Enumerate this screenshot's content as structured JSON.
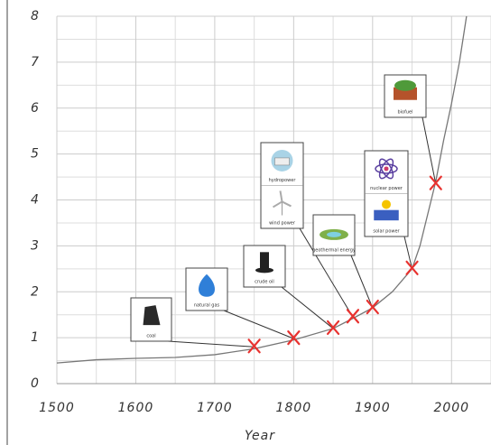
{
  "chart_data": {
    "type": "line",
    "x_label": "Year",
    "x": [
      1500,
      1550,
      1600,
      1650,
      1700,
      1750,
      1800,
      1850,
      1875,
      1900,
      1925,
      1950,
      1960,
      1970,
      1980,
      1990,
      2000,
      2010,
      2019
    ],
    "series": [
      {
        "color": "#777777",
        "values": [
          0.45,
          0.52,
          0.55,
          0.57,
          0.63,
          0.76,
          0.95,
          1.2,
          1.42,
          1.65,
          2.0,
          2.5,
          3.0,
          3.7,
          4.4,
          5.3,
          6.1,
          7.0,
          8.0
        ]
      }
    ],
    "markers": {
      "color": "#e8322f",
      "points": [
        {
          "labels": [
            "coal"
          ],
          "x": 1750,
          "y": 0.8
        },
        {
          "labels": [
            "natural gas"
          ],
          "x": 1800,
          "y": 0.98
        },
        {
          "labels": [
            "crude oil"
          ],
          "x": 1850,
          "y": 1.2
        },
        {
          "labels": [
            "hydropower",
            "wind power"
          ],
          "x": 1875,
          "y": 1.45
        },
        {
          "labels": [
            "geothermal energy"
          ],
          "x": 1900,
          "y": 1.65
        },
        {
          "labels": [
            "nuclear power",
            "solar power"
          ],
          "x": 1950,
          "y": 2.5
        },
        {
          "labels": [
            "biofuel"
          ],
          "x": 1980,
          "y": 4.35
        }
      ]
    },
    "xlim": [
      1500,
      2050
    ],
    "ylim": [
      0,
      8
    ],
    "xticks": [
      1500,
      1600,
      1700,
      1800,
      1900,
      2000
    ],
    "yticks": [
      0,
      1,
      2,
      3,
      4,
      5,
      6,
      7,
      8
    ],
    "grid": true
  }
}
